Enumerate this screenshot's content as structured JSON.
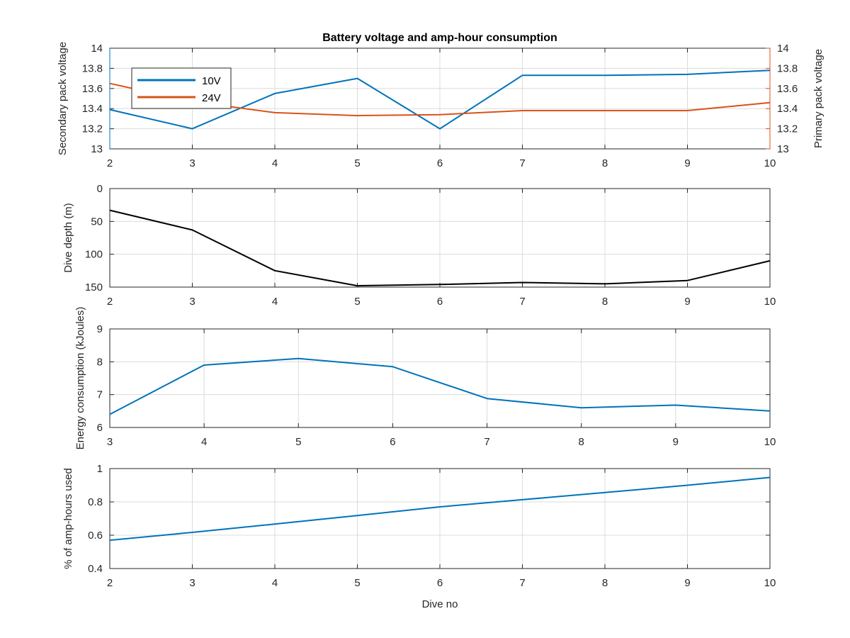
{
  "figure": {
    "title": "Battery voltage and amp-hour consumption"
  },
  "colors": {
    "blue": "#0072bd",
    "orange": "#d95319",
    "black": "#000000",
    "text": "#262626",
    "grid": "#dcdcdc"
  },
  "chart_data": [
    {
      "type": "line",
      "panel": "voltage",
      "title": "Battery voltage and amp-hour consumption",
      "xlabel": "",
      "ylabel": "Secondary pack voltage",
      "ylabel_right": "Primary pack voltage",
      "xlim": [
        2,
        10
      ],
      "xticks": [
        2,
        3,
        4,
        5,
        6,
        7,
        8,
        9,
        10
      ],
      "ylim": [
        13,
        14
      ],
      "yticks": [
        "13",
        "13.2",
        "13.4",
        "13.6",
        "13.8",
        "14"
      ],
      "ylim_right": [
        13,
        14
      ],
      "yticks_right": [
        "13",
        "13.2",
        "13.4",
        "13.6",
        "13.8",
        "14"
      ],
      "grid": true,
      "legend": {
        "placement": "top-left",
        "entries": [
          "10V",
          "24V"
        ]
      },
      "series": [
        {
          "name": "10V",
          "axis": "left",
          "color": "#0072bd",
          "x": [
            2,
            3,
            4,
            5,
            6,
            7,
            8,
            9,
            10
          ],
          "y": [
            13.39,
            13.2,
            13.55,
            13.7,
            13.2,
            13.73,
            13.73,
            13.74,
            13.78
          ]
        },
        {
          "name": "24V",
          "axis": "right",
          "color": "#d95319",
          "x": [
            2,
            3,
            4,
            5,
            6,
            7,
            8,
            9,
            10
          ],
          "y": [
            13.65,
            13.47,
            13.36,
            13.33,
            13.34,
            13.38,
            13.38,
            13.38,
            13.46
          ]
        }
      ]
    },
    {
      "type": "line",
      "panel": "depth",
      "xlabel": "",
      "ylabel": "Dive depth (m)",
      "xlim": [
        2,
        10
      ],
      "xticks": [
        2,
        3,
        4,
        5,
        6,
        7,
        8,
        9,
        10
      ],
      "ylim": [
        0,
        150
      ],
      "y_reversed": true,
      "yticks": [
        "0",
        "50",
        "100",
        "150"
      ],
      "grid": true,
      "series": [
        {
          "color": "#000000",
          "x": [
            2,
            3,
            4,
            5,
            6,
            7,
            8,
            9,
            10
          ],
          "y": [
            33,
            63,
            125,
            148,
            146,
            143,
            145,
            140,
            110
          ]
        }
      ]
    },
    {
      "type": "line",
      "panel": "energy",
      "xlabel": "",
      "ylabel": "Energy consumption (kJoules)",
      "xlim": [
        3,
        10
      ],
      "xticks": [
        3,
        4,
        5,
        6,
        7,
        8,
        9,
        10
      ],
      "ylim": [
        6,
        9
      ],
      "yticks": [
        "6",
        "7",
        "8",
        "9"
      ],
      "grid": true,
      "series": [
        {
          "color": "#0072bd",
          "x": [
            3,
            4,
            5,
            6,
            7,
            8,
            9,
            10
          ],
          "y": [
            6.4,
            7.9,
            8.1,
            7.85,
            6.88,
            6.6,
            6.68,
            6.5
          ]
        }
      ]
    },
    {
      "type": "line",
      "panel": "amphours",
      "xlabel": "Dive no",
      "ylabel": "% of amp-hours used",
      "xlim": [
        2,
        10
      ],
      "xticks": [
        2,
        3,
        4,
        5,
        6,
        7,
        8,
        9,
        10
      ],
      "ylim": [
        0.4,
        1
      ],
      "yticks": [
        "0.4",
        "0.6",
        "0.8",
        "1"
      ],
      "grid": true,
      "series": [
        {
          "color": "#0072bd",
          "x": [
            2,
            3,
            4,
            5,
            6,
            7,
            8,
            9,
            10
          ],
          "y": [
            0.57,
            0.617,
            0.667,
            0.718,
            0.77,
            0.813,
            0.856,
            0.9,
            0.947
          ]
        }
      ]
    }
  ]
}
